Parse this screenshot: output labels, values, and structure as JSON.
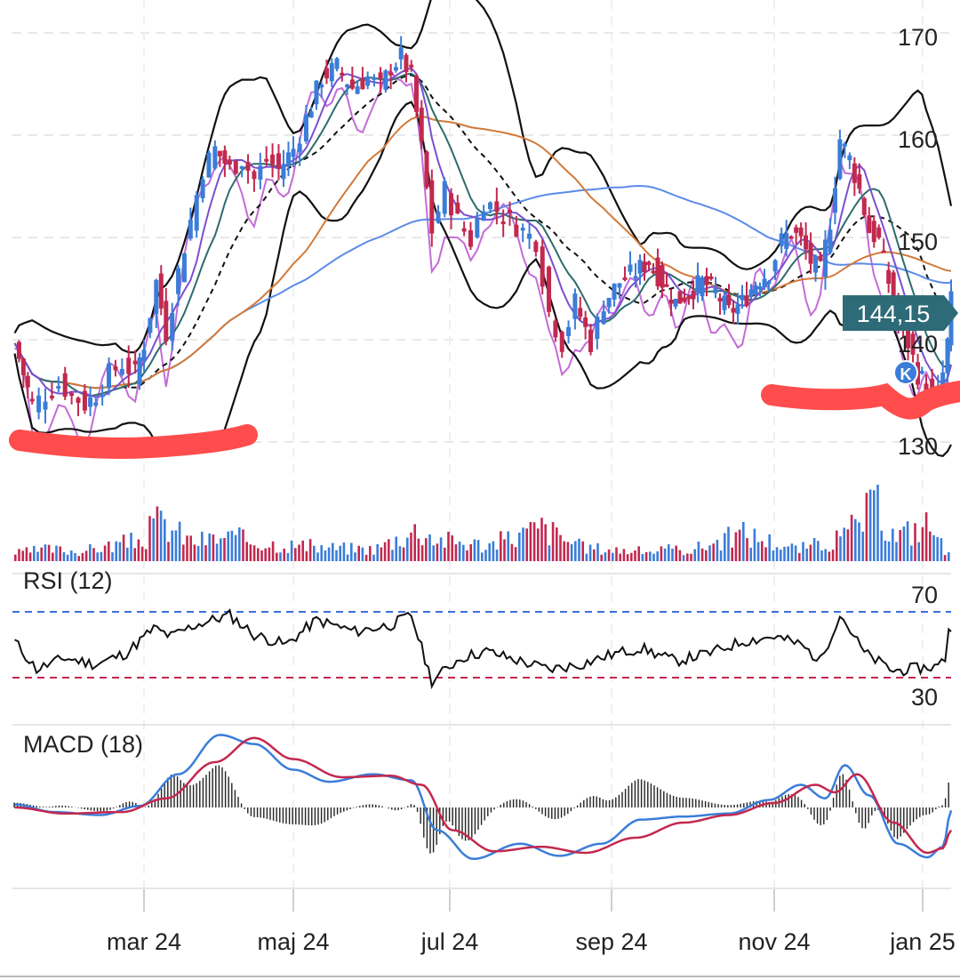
{
  "colors": {
    "up": "#3b7dd8",
    "down": "#c2294f",
    "rsi_upper": "#3b6fd8",
    "rsi_lower": "#c2294f",
    "macd_line": "#3b7dd8",
    "signal_line": "#c2294f",
    "price_tag": "#2e6b78",
    "marker": "#ff4d4d",
    "bollinger": "#111111",
    "ma_long": "#5b8be8",
    "ma_mid": "#d27a3a",
    "ma_short_green": "#2e6b6b",
    "ma_short_purple": "#7b4fd0",
    "comparison": "#c46bd8"
  },
  "price_tag": {
    "value": "144,15"
  },
  "event_badge": {
    "label": "K"
  },
  "panels": {
    "rsi": {
      "label": "RSI (12)",
      "upper": "70",
      "lower": "30"
    },
    "macd": {
      "label": "MACD (18)"
    }
  },
  "chart_data": {
    "type": "candlestick",
    "y_ticks": [
      "170",
      "160",
      "150",
      "140",
      "130"
    ],
    "ylim": [
      128,
      175
    ],
    "x_ticks": [
      "mar 24",
      "maj 24",
      "jul 24",
      "sep 24",
      "nov 24",
      "jan 25"
    ],
    "close_series": [
      [
        "2024-01-02",
        140
      ],
      [
        "2024-01-06",
        137
      ],
      [
        "2024-01-10",
        134
      ],
      [
        "2024-01-16",
        135
      ],
      [
        "2024-01-22",
        136
      ],
      [
        "2024-01-28",
        135
      ],
      [
        "2024-02-03",
        134
      ],
      [
        "2024-02-08",
        135
      ],
      [
        "2024-02-14",
        137
      ],
      [
        "2024-02-20",
        138
      ],
      [
        "2024-02-26",
        137
      ],
      [
        "2024-03-01",
        140
      ],
      [
        "2024-03-06",
        146
      ],
      [
        "2024-03-10",
        141
      ],
      [
        "2024-03-15",
        147
      ],
      [
        "2024-03-20",
        152
      ],
      [
        "2024-03-25",
        157
      ],
      [
        "2024-03-30",
        159
      ],
      [
        "2024-04-05",
        157
      ],
      [
        "2024-04-10",
        158
      ],
      [
        "2024-04-15",
        156
      ],
      [
        "2024-04-20",
        158
      ],
      [
        "2024-04-25",
        157
      ],
      [
        "2024-05-01",
        159
      ],
      [
        "2024-05-06",
        162
      ],
      [
        "2024-05-12",
        166
      ],
      [
        "2024-05-18",
        167
      ],
      [
        "2024-05-24",
        165
      ],
      [
        "2024-05-30",
        166
      ],
      [
        "2024-06-04",
        165
      ],
      [
        "2024-06-08",
        167
      ],
      [
        "2024-06-12",
        168
      ],
      [
        "2024-06-16",
        166
      ],
      [
        "2024-06-20",
        159
      ],
      [
        "2024-06-24",
        151
      ],
      [
        "2024-06-29",
        155
      ],
      [
        "2024-07-04",
        152
      ],
      [
        "2024-07-09",
        150
      ],
      [
        "2024-07-14",
        154
      ],
      [
        "2024-07-19",
        153
      ],
      [
        "2024-07-24",
        152
      ],
      [
        "2024-07-29",
        151
      ],
      [
        "2024-08-03",
        150
      ],
      [
        "2024-08-08",
        143
      ],
      [
        "2024-08-13",
        140
      ],
      [
        "2024-08-18",
        144
      ],
      [
        "2024-08-24",
        140
      ],
      [
        "2024-08-29",
        144
      ],
      [
        "2024-09-04",
        146
      ],
      [
        "2024-09-10",
        147
      ],
      [
        "2024-09-15",
        148
      ],
      [
        "2024-09-20",
        146
      ],
      [
        "2024-09-25",
        144
      ],
      [
        "2024-09-30",
        145
      ],
      [
        "2024-10-05",
        146
      ],
      [
        "2024-10-10",
        145
      ],
      [
        "2024-10-15",
        143
      ],
      [
        "2024-10-20",
        144
      ],
      [
        "2024-10-25",
        146
      ],
      [
        "2024-10-30",
        147
      ],
      [
        "2024-11-04",
        150
      ],
      [
        "2024-11-08",
        151
      ],
      [
        "2024-11-12",
        150
      ],
      [
        "2024-11-16",
        148
      ],
      [
        "2024-11-20",
        147
      ],
      [
        "2024-11-24",
        152
      ],
      [
        "2024-11-28",
        160
      ],
      [
        "2024-12-02",
        158
      ],
      [
        "2024-12-06",
        155
      ],
      [
        "2024-12-10",
        151
      ],
      [
        "2024-12-14",
        150
      ],
      [
        "2024-12-18",
        146
      ],
      [
        "2024-12-22",
        142
      ],
      [
        "2024-12-26",
        140
      ],
      [
        "2024-12-30",
        137
      ],
      [
        "2025-01-04",
        136
      ],
      [
        "2025-01-09",
        135
      ],
      [
        "2025-01-14",
        135
      ],
      [
        "2025-01-18",
        137
      ],
      [
        "2025-01-22",
        140
      ],
      [
        "2025-01-25",
        144.15
      ]
    ],
    "rsi_series": [
      [
        "2024-01-02",
        52
      ],
      [
        "2024-01-12",
        35
      ],
      [
        "2024-01-25",
        42
      ],
      [
        "2024-02-08",
        38
      ],
      [
        "2024-02-22",
        45
      ],
      [
        "2024-03-05",
        60
      ],
      [
        "2024-03-12",
        55
      ],
      [
        "2024-03-22",
        62
      ],
      [
        "2024-04-05",
        68
      ],
      [
        "2024-04-15",
        56
      ],
      [
        "2024-04-28",
        50
      ],
      [
        "2024-05-10",
        65
      ],
      [
        "2024-05-25",
        58
      ],
      [
        "2024-06-08",
        62
      ],
      [
        "2024-06-16",
        68
      ],
      [
        "2024-06-24",
        28
      ],
      [
        "2024-07-05",
        42
      ],
      [
        "2024-07-15",
        46
      ],
      [
        "2024-07-28",
        40
      ],
      [
        "2024-08-08",
        35
      ],
      [
        "2024-08-20",
        38
      ],
      [
        "2024-09-01",
        44
      ],
      [
        "2024-09-12",
        48
      ],
      [
        "2024-09-25",
        40
      ],
      [
        "2024-10-08",
        45
      ],
      [
        "2024-10-20",
        52
      ],
      [
        "2024-11-01",
        55
      ],
      [
        "2024-11-12",
        50
      ],
      [
        "2024-11-20",
        40
      ],
      [
        "2024-11-28",
        69
      ],
      [
        "2024-12-08",
        45
      ],
      [
        "2024-12-20",
        34
      ],
      [
        "2025-01-02",
        36
      ],
      [
        "2025-01-14",
        37
      ],
      [
        "2025-01-20",
        42
      ],
      [
        "2025-01-23",
        60
      ],
      [
        "2025-01-25",
        58
      ]
    ],
    "macd_series": [
      [
        "2024-01-02",
        0.2
      ],
      [
        "2024-01-20",
        -0.3
      ],
      [
        "2024-02-10",
        -0.5
      ],
      [
        "2024-02-28",
        0.1
      ],
      [
        "2024-03-15",
        2.2
      ],
      [
        "2024-04-01",
        4.8
      ],
      [
        "2024-04-15",
        4.2
      ],
      [
        "2024-05-01",
        2.5
      ],
      [
        "2024-05-15",
        1.7
      ],
      [
        "2024-06-01",
        2.2
      ],
      [
        "2024-06-16",
        1.8
      ],
      [
        "2024-06-26",
        -1.5
      ],
      [
        "2024-07-10",
        -3.4
      ],
      [
        "2024-07-28",
        -2.4
      ],
      [
        "2024-08-12",
        -3.2
      ],
      [
        "2024-08-28",
        -2.4
      ],
      [
        "2024-09-12",
        -0.8
      ],
      [
        "2024-09-28",
        -0.6
      ],
      [
        "2024-10-15",
        -0.4
      ],
      [
        "2024-10-30",
        0.5
      ],
      [
        "2024-11-12",
        1.5
      ],
      [
        "2024-11-22",
        0.6
      ],
      [
        "2024-11-30",
        2.8
      ],
      [
        "2024-12-10",
        0.8
      ],
      [
        "2024-12-22",
        -2.4
      ],
      [
        "2025-01-05",
        -3.3
      ],
      [
        "2025-01-18",
        -2.6
      ],
      [
        "2025-01-25",
        -0.2
      ]
    ],
    "signal_series": [
      [
        "2024-01-02",
        0.0
      ],
      [
        "2024-01-25",
        -0.4
      ],
      [
        "2024-02-20",
        -0.3
      ],
      [
        "2024-03-10",
        0.6
      ],
      [
        "2024-03-30",
        3.0
      ],
      [
        "2024-04-15",
        4.6
      ],
      [
        "2024-05-01",
        3.2
      ],
      [
        "2024-05-20",
        2.0
      ],
      [
        "2024-06-08",
        2.1
      ],
      [
        "2024-06-20",
        1.5
      ],
      [
        "2024-07-02",
        -1.5
      ],
      [
        "2024-07-18",
        -2.9
      ],
      [
        "2024-08-05",
        -2.6
      ],
      [
        "2024-08-22",
        -3.0
      ],
      [
        "2024-09-10",
        -2.0
      ],
      [
        "2024-09-28",
        -1.0
      ],
      [
        "2024-10-15",
        -0.5
      ],
      [
        "2024-11-01",
        0.3
      ],
      [
        "2024-11-18",
        1.5
      ],
      [
        "2024-11-26",
        1.0
      ],
      [
        "2024-12-05",
        2.2
      ],
      [
        "2024-12-20",
        -1.0
      ],
      [
        "2025-01-05",
        -3.0
      ],
      [
        "2025-01-18",
        -2.7
      ],
      [
        "2025-01-25",
        -1.5
      ]
    ],
    "volume_series": [
      [
        "2024-01-02",
        20
      ],
      [
        "2024-01-16",
        30
      ],
      [
        "2024-02-01",
        25
      ],
      [
        "2024-02-15",
        40
      ],
      [
        "2024-03-01",
        55
      ],
      [
        "2024-03-05",
        100
      ],
      [
        "2024-03-10",
        90
      ],
      [
        "2024-03-20",
        50
      ],
      [
        "2024-04-05",
        60
      ],
      [
        "2024-04-20",
        45
      ],
      [
        "2024-05-10",
        35
      ],
      [
        "2024-06-01",
        30
      ],
      [
        "2024-06-18",
        80
      ],
      [
        "2024-06-26",
        55
      ],
      [
        "2024-07-15",
        40
      ],
      [
        "2024-08-05",
        85
      ],
      [
        "2024-08-20",
        35
      ],
      [
        "2024-09-10",
        25
      ],
      [
        "2024-10-01",
        30
      ],
      [
        "2024-10-20",
        70
      ],
      [
        "2024-11-10",
        30
      ],
      [
        "2024-11-28",
        55
      ],
      [
        "2024-12-12",
        140
      ],
      [
        "2024-12-20",
        60
      ],
      [
        "2025-01-06",
        95
      ],
      [
        "2025-01-18",
        30
      ],
      [
        "2025-01-25",
        45
      ]
    ]
  }
}
